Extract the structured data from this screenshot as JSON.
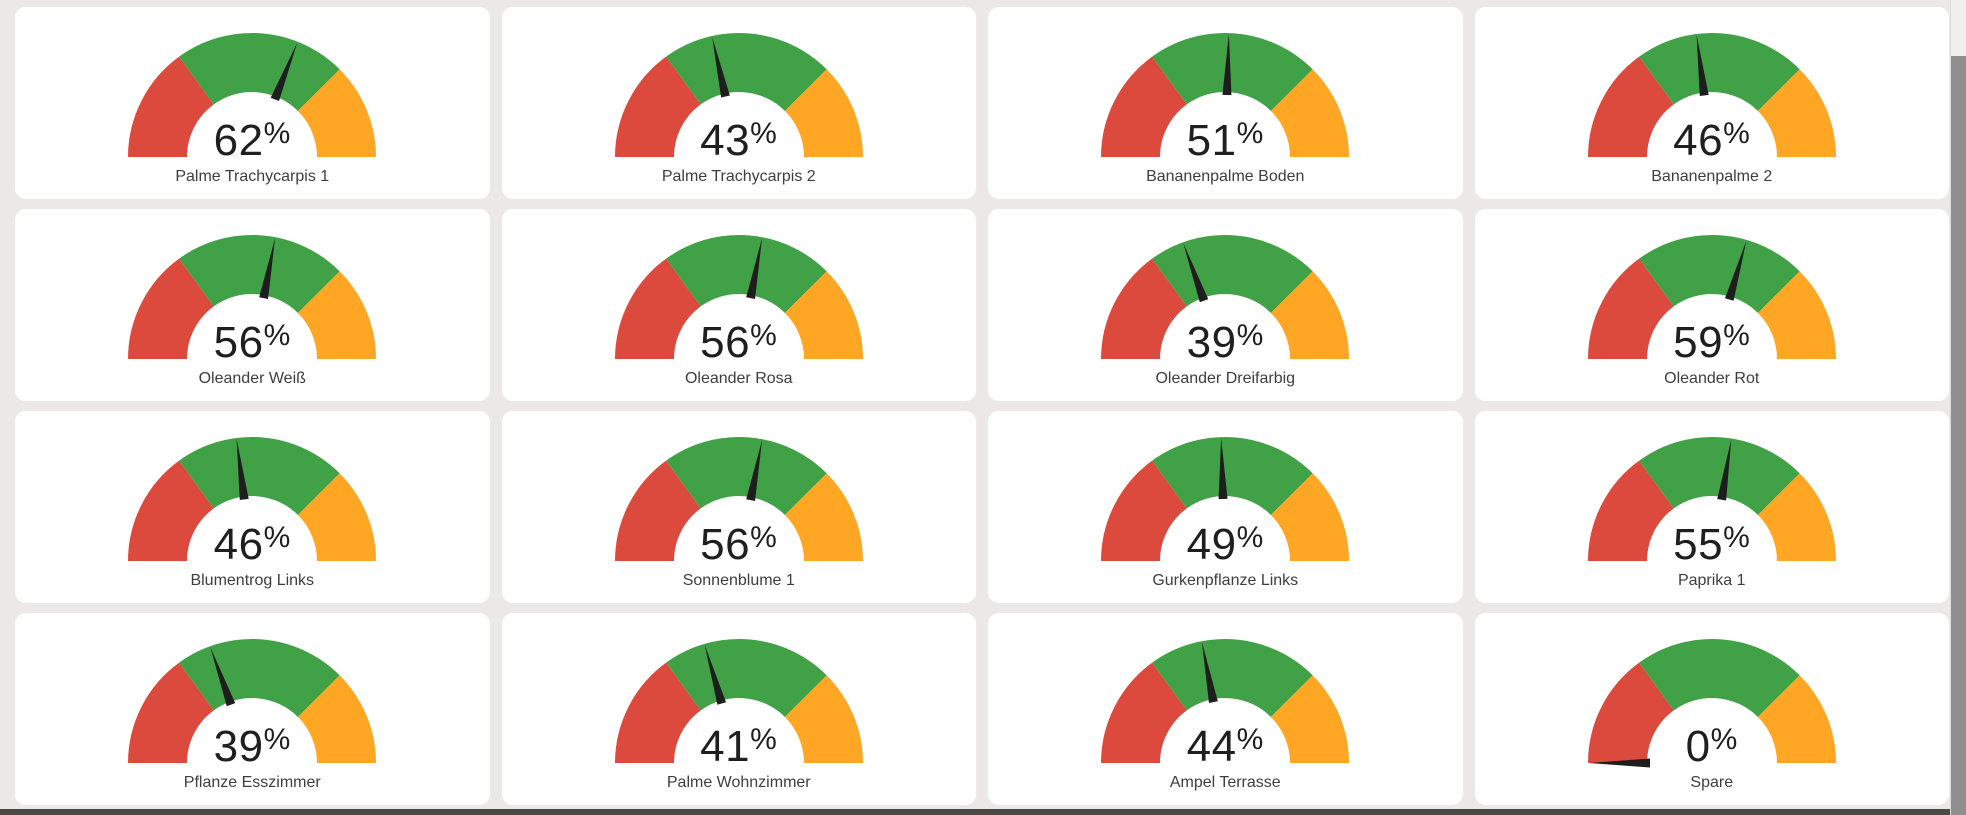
{
  "page": {
    "background_color": "#ebe8e7",
    "card_color": "#ffffff",
    "bottom_strip_color": "#4c4a47"
  },
  "gauge_config": {
    "min": 0,
    "max": 100,
    "unit": "%",
    "bands": [
      {
        "name": "low",
        "from": 0,
        "to": 30,
        "color": "#dc4a3d"
      },
      {
        "name": "ok",
        "from": 30,
        "to": 75,
        "color": "#41a146"
      },
      {
        "name": "high",
        "from": 75,
        "to": 100,
        "color": "#ffa724"
      }
    ],
    "needle_color": "#1e1e1e",
    "value_text_color": "#1f1f1f",
    "label_text_color": "#3e3e3e"
  },
  "gauges": [
    {
      "label": "Palme Trachycarpis 1",
      "value": 62
    },
    {
      "label": "Palme Trachycarpis 2",
      "value": 43
    },
    {
      "label": "Bananenpalme Boden",
      "value": 51
    },
    {
      "label": "Bananenpalme 2",
      "value": 46
    },
    {
      "label": "Oleander Weiß",
      "value": 56
    },
    {
      "label": "Oleander Rosa",
      "value": 56
    },
    {
      "label": "Oleander Dreifarbig",
      "value": 39
    },
    {
      "label": "Oleander Rot",
      "value": 59
    },
    {
      "label": "Blumentrog Links",
      "value": 46
    },
    {
      "label": "Sonnenblume 1",
      "value": 56
    },
    {
      "label": "Gurkenpflanze Links",
      "value": 49
    },
    {
      "label": "Paprika 1",
      "value": 55
    },
    {
      "label": "Pflanze Esszimmer",
      "value": 39
    },
    {
      "label": "Palme Wohnzimmer",
      "value": 41
    },
    {
      "label": "Ampel Terrasse",
      "value": 44
    },
    {
      "label": "Spare",
      "value": 0
    }
  ],
  "scrollbar": {
    "track_color": "#f2f0ef",
    "thumb_color": "#8f8f8f"
  }
}
